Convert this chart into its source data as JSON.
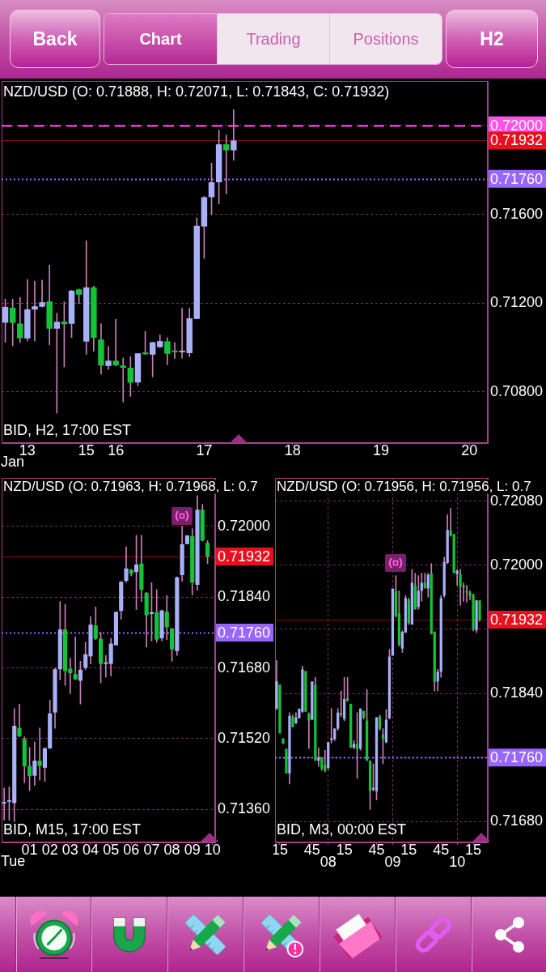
{
  "chart_data": [
    {
      "type": "other",
      "annotations": [
        "Back",
        "Chart",
        "Trading",
        "Positions",
        "H2"
      ]
    },
    {
      "type": "candlestick",
      "title": "NZD/USD (O: 0.71888, H: 0.72071, L: 0.71843, C: 0.71932)",
      "annotations": [
        "BID, H2, 17:00 EST",
        "Jan"
      ],
      "categories": [
        null,
        null,
        null,
        "13",
        null,
        null,
        null,
        null,
        null,
        null,
        null,
        "15",
        null,
        null,
        null,
        "16",
        null,
        null,
        null,
        null,
        null,
        null,
        null,
        null,
        null,
        null,
        null,
        "17",
        null,
        null,
        null,
        null,
        null,
        null,
        null,
        null,
        null,
        null,
        null,
        "18",
        null,
        null,
        null,
        null,
        null,
        null,
        null,
        null,
        null,
        null,
        null,
        "19",
        null,
        null,
        null,
        null,
        null,
        null,
        null,
        null,
        null,
        null,
        null,
        "20",
        null,
        null
      ],
      "ohlc": [
        [
          0.71112,
          0.71218,
          0.71024,
          0.71183
        ],
        [
          0.71179,
          0.71218,
          0.71008,
          0.71111
        ],
        [
          0.71108,
          0.71226,
          0.71023,
          0.71042
        ],
        [
          0.71041,
          0.71306,
          0.7103,
          0.71172
        ],
        [
          0.71171,
          0.71298,
          0.7103,
          0.71186
        ],
        [
          0.71184,
          0.71304,
          0.71182,
          0.71204
        ],
        [
          0.71208,
          0.71371,
          0.71012,
          0.71085
        ],
        [
          0.71085,
          0.71155,
          0.70705,
          0.71116
        ],
        [
          0.71117,
          0.71206,
          0.70913,
          0.71105
        ],
        [
          0.71107,
          0.71258,
          0.71045,
          0.71256
        ],
        [
          0.71262,
          0.71264,
          0.71197,
          0.71238
        ],
        [
          0.71027,
          0.71481,
          0.70969,
          0.71271
        ],
        [
          0.71271,
          0.71277,
          0.70984,
          0.71044
        ],
        [
          0.71036,
          0.71108,
          0.7088,
          0.70919
        ],
        [
          0.70917,
          0.71005,
          0.70901,
          0.70941
        ],
        [
          0.70941,
          0.71127,
          0.70917,
          0.7092
        ],
        [
          0.70919,
          0.70953,
          0.70755,
          0.70909
        ],
        [
          0.70909,
          0.70959,
          0.7078,
          0.70842
        ],
        [
          0.70843,
          0.70974,
          0.70828,
          0.70974
        ],
        [
          0.70975,
          0.71073,
          0.70968,
          0.7097
        ],
        [
          0.70968,
          0.71024,
          0.70868,
          0.71024
        ],
        [
          0.71002,
          0.71057,
          0.71,
          0.71029
        ],
        [
          0.71028,
          0.71045,
          0.70923,
          0.70972
        ],
        [
          0.70981,
          0.71023,
          0.7095,
          0.70979
        ],
        [
          0.70979,
          0.71177,
          0.70952,
          0.70981
        ],
        [
          0.70975,
          0.71177,
          0.70959,
          0.71132
        ],
        [
          0.71129,
          0.71584,
          0.71129,
          0.71548
        ],
        [
          0.71545,
          0.7168,
          0.71401,
          0.71677
        ],
        [
          0.71677,
          0.7183,
          0.71598,
          0.71744
        ],
        [
          0.71744,
          0.71979,
          0.71647,
          0.71915
        ],
        [
          0.71915,
          0.71957,
          0.71692,
          0.71888
        ],
        [
          0.71888,
          0.72071,
          0.71843,
          0.71932
        ],
        null,
        null,
        null,
        null,
        null,
        null,
        null,
        null,
        null,
        null,
        null,
        null,
        null,
        null,
        null,
        null,
        null,
        null,
        null,
        null,
        null,
        null,
        null,
        null,
        null,
        null,
        null,
        null,
        null,
        null,
        null,
        null,
        null,
        null
      ],
      "colors": [
        "#a8b0f8",
        "#16c236",
        "#16c236",
        "#a8b0f8",
        "#a8b0f8",
        "#a8b0f8",
        "#16c236",
        "#a8b0f8",
        "#16c236",
        "#a8b0f8",
        "#16c236",
        "#a8b0f8",
        "#16c236",
        "#16c236",
        "#a8b0f8",
        "#16c236",
        "#16c236",
        "#16c236",
        "#a8b0f8",
        "#16c236",
        "#a8b0f8",
        "#a8b0f8",
        "#16c236",
        "#16c236",
        "#a8b0f8",
        "#a8b0f8",
        "#a8b0f8",
        "#a8b0f8",
        "#a8b0f8",
        "#a8b0f8",
        "#16c236",
        "#a8b0f8",
        null,
        null,
        null,
        null,
        null,
        null,
        null,
        null,
        null,
        null,
        null,
        null,
        null,
        null,
        null,
        null,
        null,
        null,
        null,
        null,
        null,
        null,
        null,
        null,
        null,
        null,
        null,
        null,
        null,
        null,
        null,
        null,
        null,
        null
      ],
      "ylim": [
        0.7057,
        0.722
      ],
      "yticks": [
        {
          "value": 0.708,
          "label": "0.70800"
        },
        {
          "value": 0.712,
          "label": "0.71200"
        },
        {
          "value": 0.716,
          "label": "0.71600"
        },
        {
          "value": 0.72,
          "label": null
        }
      ],
      "grid": "y",
      "ref_lines": [
        {
          "axis": "y",
          "value": 0.72,
          "label": "0.72000",
          "color": "#ff55e6",
          "line_style": "dashed"
        },
        {
          "axis": "y",
          "value": 0.71932,
          "label": "0.71932",
          "color": "#e8101e",
          "line_style": "solid"
        },
        {
          "axis": "y",
          "value": 0.7176,
          "label": "0.71760",
          "color": "#9966ff",
          "line_style": "dotted"
        }
      ]
    },
    {
      "type": "candlestick",
      "title": "NZD/USD (O: 0.71963, H: 0.71968, L: 0.7",
      "annotations": [
        "BID, M15, 17:00 EST",
        "Tue"
      ],
      "categories": [
        null,
        null,
        null,
        null,
        null,
        "01",
        null,
        null,
        null,
        "02",
        null,
        null,
        null,
        "03",
        null,
        null,
        null,
        "04",
        null,
        null,
        null,
        "05",
        null,
        null,
        null,
        "06",
        null,
        null,
        null,
        "07",
        null,
        null,
        null,
        "08",
        null,
        null,
        null,
        "09",
        null,
        null,
        null,
        "10"
      ],
      "ohlc": [
        [
          0.71373,
          0.71408,
          0.71335,
          0.71374
        ],
        [
          0.71377,
          0.71411,
          0.71335,
          0.71378
        ],
        [
          0.71374,
          0.71588,
          0.71332,
          0.71549
        ],
        [
          0.71544,
          0.71598,
          0.71524,
          0.71525
        ],
        [
          0.71519,
          0.71524,
          0.7142,
          0.71457
        ],
        [
          0.71458,
          0.715,
          0.71402,
          0.71435
        ],
        [
          0.71436,
          0.71512,
          0.71414,
          0.7147
        ],
        [
          0.7147,
          0.71544,
          0.71426,
          0.71458
        ],
        [
          0.71454,
          0.715,
          0.71423,
          0.71498
        ],
        [
          0.71498,
          0.71607,
          0.71497,
          0.71577
        ],
        [
          0.71579,
          0.7168,
          0.71543,
          0.71677
        ],
        [
          0.71677,
          0.7183,
          0.71653,
          0.71767
        ],
        [
          0.71767,
          0.71824,
          0.7164,
          0.71673
        ],
        [
          0.71678,
          0.71702,
          0.71622,
          0.71668
        ],
        [
          0.71666,
          0.7175,
          0.71653,
          0.71654
        ],
        [
          0.71651,
          0.71695,
          0.71598,
          0.71676
        ],
        [
          0.7168,
          0.71738,
          0.71676,
          0.71711
        ],
        [
          0.71706,
          0.71796,
          0.71689,
          0.71778
        ],
        [
          0.71776,
          0.71818,
          0.71744,
          0.71746
        ],
        [
          0.71746,
          0.7176,
          0.71646,
          0.71689
        ],
        [
          0.71689,
          0.71708,
          0.71659,
          0.7169
        ],
        [
          0.71689,
          0.71747,
          0.71662,
          0.71735
        ],
        [
          0.71731,
          0.71808,
          0.7173,
          0.71807
        ],
        [
          0.71809,
          0.71876,
          0.7179,
          0.71875
        ],
        [
          0.71877,
          0.71954,
          0.71873,
          0.71905
        ],
        [
          0.71902,
          0.71903,
          0.71888,
          0.71893
        ],
        [
          0.71897,
          0.7198,
          0.71812,
          0.71914
        ],
        [
          0.71916,
          0.7198,
          0.7183,
          0.71857
        ],
        [
          0.7185,
          0.71851,
          0.71727,
          0.71799
        ],
        [
          0.71802,
          0.71873,
          0.71741,
          0.71806
        ],
        [
          0.71806,
          0.71857,
          0.71738,
          0.71744
        ],
        [
          0.71747,
          0.71811,
          0.71741,
          0.7181
        ],
        [
          0.71807,
          0.71844,
          0.71744,
          0.71772
        ],
        [
          0.71769,
          0.7177,
          0.71695,
          0.71722
        ],
        [
          0.71718,
          0.71886,
          0.71708,
          0.71885
        ],
        [
          0.7189,
          0.72001,
          0.71876,
          0.7196
        ],
        [
          0.7196,
          0.71981,
          0.71959,
          0.7198
        ],
        [
          0.71978,
          0.71995,
          0.71845,
          0.71873
        ],
        [
          0.71868,
          0.7207,
          0.71856,
          0.72038
        ],
        [
          0.72038,
          0.7205,
          0.71967,
          0.71968
        ],
        [
          0.71963,
          0.71968,
          0.71916,
          0.71932
        ],
        null
      ],
      "colors": [
        "#a8b0f8",
        "#a8b0f8",
        "#a8b0f8",
        "#16c236",
        "#16c236",
        "#16c236",
        "#a8b0f8",
        "#16c236",
        "#a8b0f8",
        "#a8b0f8",
        "#a8b0f8",
        "#a8b0f8",
        "#16c236",
        "#16c236",
        "#16c236",
        "#a8b0f8",
        "#a8b0f8",
        "#a8b0f8",
        "#16c236",
        "#16c236",
        "#a8b0f8",
        "#a8b0f8",
        "#a8b0f8",
        "#a8b0f8",
        "#a8b0f8",
        "#16c236",
        "#a8b0f8",
        "#16c236",
        "#16c236",
        "#a8b0f8",
        "#16c236",
        "#a8b0f8",
        "#16c236",
        "#16c236",
        "#a8b0f8",
        "#a8b0f8",
        "#a8b0f8",
        "#16c236",
        "#a8b0f8",
        "#16c236",
        "#16c236",
        null
      ],
      "ylim": [
        0.71285,
        0.7211
      ],
      "yticks": [
        {
          "value": 0.7136,
          "label": "0.71360"
        },
        {
          "value": 0.7152,
          "label": "0.71520"
        },
        {
          "value": 0.7168,
          "label": "0.71680"
        },
        {
          "value": 0.7184,
          "label": "0.71840"
        },
        {
          "value": 0.72,
          "label": "0.72000"
        }
      ],
      "grid": "y",
      "ref_lines": [
        {
          "axis": "y",
          "value": 0.71932,
          "label": "0.71932",
          "color": "#e8101e",
          "line_style": "solid"
        },
        {
          "axis": "y",
          "value": 0.7176,
          "label": "0.71760",
          "color": "#9966ff",
          "line_style": "dotted"
        }
      ]
    },
    {
      "type": "candlestick",
      "title": "NZD/USD (O: 0.71956, H: 0.71956, L: 0.7",
      "annotations": [
        "BID, M3, 00:00 EST"
      ],
      "categories": [
        null,
        "15",
        null,
        null,
        null,
        null,
        null,
        null,
        null,
        null,
        null,
        "45",
        null,
        null,
        null,
        null,
        "\n08",
        null,
        null,
        null,
        null,
        "15",
        null,
        null,
        null,
        null,
        null,
        null,
        null,
        null,
        null,
        "45",
        null,
        null,
        null,
        null,
        "\n09",
        null,
        null,
        null,
        null,
        "15",
        null,
        null,
        null,
        null,
        null,
        null,
        null,
        null,
        null,
        "45",
        null,
        null,
        null,
        null,
        "\n10",
        null,
        null,
        null,
        null,
        "15",
        null,
        null,
        null,
        null
      ],
      "ohlc": [
        [
          0.71821,
          0.71881,
          0.7182,
          0.71855
        ],
        [
          0.71851,
          0.71851,
          0.71789,
          0.7179
        ],
        [
          0.71784,
          0.71784,
          0.71776,
          0.71777
        ],
        [
          0.71771,
          0.71771,
          0.71739,
          0.7174
        ],
        [
          0.7174,
          0.71816,
          0.71727,
          0.71812
        ],
        [
          0.71811,
          0.71813,
          0.71798,
          0.71798
        ],
        [
          0.71803,
          0.71816,
          0.71802,
          0.7181
        ],
        [
          0.71809,
          0.71821,
          0.71808,
          0.71821
        ],
        [
          0.71817,
          0.71874,
          0.71816,
          0.7187
        ],
        [
          0.71868,
          0.71869,
          0.71816,
          0.71817
        ],
        [
          0.71814,
          0.71816,
          0.71771,
          0.71806
        ],
        [
          0.71807,
          0.71855,
          0.71806,
          0.71855
        ],
        [
          0.71851,
          0.7186,
          0.71756,
          0.71756
        ],
        [
          0.71756,
          0.71772,
          0.71749,
          0.7176
        ],
        [
          0.7176,
          0.7176,
          0.71744,
          0.71746
        ],
        [
          0.71751,
          0.71769,
          0.71742,
          0.71744
        ],
        [
          0.71747,
          0.71779,
          0.71745,
          0.71779
        ],
        [
          0.71782,
          0.71821,
          0.71778,
          0.71783
        ],
        [
          0.71783,
          0.71796,
          0.71781,
          0.71796
        ],
        [
          0.71796,
          0.71821,
          0.71794,
          0.71816
        ],
        [
          0.71816,
          0.71843,
          0.71811,
          0.71813
        ],
        [
          0.71808,
          0.7186,
          0.71806,
          0.71833
        ],
        [
          0.71834,
          0.7186,
          0.7183,
          0.71831
        ],
        [
          0.71827,
          0.71827,
          0.71772,
          0.71772
        ],
        [
          0.71772,
          0.71781,
          0.71771,
          0.71777
        ],
        [
          0.71777,
          0.71816,
          0.71734,
          0.71771
        ],
        [
          0.71771,
          0.71821,
          0.71769,
          0.71821
        ],
        [
          0.71818,
          0.71818,
          0.71808,
          0.7181
        ],
        [
          0.71806,
          0.71845,
          0.71756,
          0.71756
        ],
        [
          0.71756,
          0.71756,
          0.71695,
          0.71718
        ],
        [
          0.7172,
          0.71752,
          0.71718,
          0.71722
        ],
        [
          0.71718,
          0.7181,
          0.71707,
          0.7181
        ],
        [
          0.71811,
          0.71813,
          0.71794,
          0.71796
        ],
        [
          0.71789,
          0.71796,
          0.71752,
          0.71783
        ],
        [
          0.71779,
          0.7182,
          0.71778,
          0.71807
        ],
        [
          0.71809,
          0.71895,
          0.71808,
          0.71886
        ],
        [
          0.71887,
          0.71971,
          0.71886,
          0.71971
        ],
        [
          0.71968,
          0.71987,
          0.71935,
          0.71937
        ],
        [
          0.7194,
          0.71968,
          0.71899,
          0.71901
        ],
        [
          0.71896,
          0.71918,
          0.71891,
          0.71917
        ],
        [
          0.71916,
          0.71962,
          0.71916,
          0.71959
        ],
        [
          0.71956,
          0.71959,
          0.71926,
          0.71928
        ],
        [
          0.71926,
          0.71995,
          0.71926,
          0.71978
        ],
        [
          0.71975,
          0.7199,
          0.71945,
          0.71945
        ],
        [
          0.71948,
          0.71987,
          0.71945,
          0.71968
        ],
        [
          0.71968,
          0.7199,
          0.71955,
          0.71978
        ],
        [
          0.71978,
          0.7199,
          0.71971,
          0.71972
        ],
        [
          0.71971,
          0.7199,
          0.7196,
          0.71988
        ],
        [
          0.7199,
          0.72002,
          0.71914,
          0.71914
        ],
        [
          0.71917,
          0.71917,
          0.71843,
          0.71854
        ],
        [
          0.71855,
          0.7187,
          0.71843,
          0.71867
        ],
        [
          0.71867,
          0.71962,
          0.7186,
          0.71959
        ],
        [
          0.71962,
          0.7201,
          0.7196,
          0.72004
        ],
        [
          0.72003,
          0.72063,
          0.72002,
          0.72044
        ],
        [
          0.72043,
          0.72071,
          0.72036,
          0.72037
        ],
        [
          0.72039,
          0.72039,
          0.71989,
          0.7199
        ],
        [
          0.71989,
          0.71995,
          0.71975,
          0.71993
        ],
        [
          0.71989,
          0.71995,
          0.7195,
          0.71973
        ],
        [
          0.71973,
          0.71978,
          0.71955,
          0.71972
        ],
        [
          0.71968,
          0.71975,
          0.71954,
          0.71966
        ],
        [
          0.71966,
          0.71968,
          0.71957,
          0.71962
        ],
        [
          0.71963,
          0.71964,
          0.71918,
          0.71921
        ],
        [
          0.71919,
          0.71956,
          0.71916,
          0.71956
        ],
        [
          0.71956,
          0.71956,
          0.7193,
          0.71932
        ],
        null,
        null
      ],
      "colors": [
        "#a8b0f8",
        "#16c236",
        "#16c236",
        "#16c236",
        "#a8b0f8",
        "#16c236",
        "#a8b0f8",
        "#a8b0f8",
        "#a8b0f8",
        "#16c236",
        "#16c236",
        "#a8b0f8",
        "#16c236",
        "#a8b0f8",
        "#16c236",
        "#16c236",
        "#a8b0f8",
        "#a8b0f8",
        "#a8b0f8",
        "#a8b0f8",
        "#16c236",
        "#a8b0f8",
        "#16c236",
        "#16c236",
        "#a8b0f8",
        "#16c236",
        "#a8b0f8",
        "#16c236",
        "#16c236",
        "#16c236",
        "#a8b0f8",
        "#a8b0f8",
        "#16c236",
        "#16c236",
        "#a8b0f8",
        "#a8b0f8",
        "#a8b0f8",
        "#16c236",
        "#16c236",
        "#a8b0f8",
        "#a8b0f8",
        "#16c236",
        "#a8b0f8",
        "#16c236",
        "#a8b0f8",
        "#a8b0f8",
        "#16c236",
        "#a8b0f8",
        "#16c236",
        "#16c236",
        "#a8b0f8",
        "#a8b0f8",
        "#a8b0f8",
        "#a8b0f8",
        "#16c236",
        "#16c236",
        "#a8b0f8",
        "#16c236",
        "#16c236",
        "#16c236",
        "#16c236",
        "#16c236",
        "#a8b0f8",
        "#16c236",
        null,
        null
      ],
      "ylim": [
        0.71654,
        0.72109
      ],
      "yticks": [
        {
          "value": 0.7168,
          "label": "0.71680"
        },
        {
          "value": 0.7176,
          "label": null
        },
        {
          "value": 0.7184,
          "label": "0.71840"
        },
        {
          "value": 0.7192,
          "label": null
        },
        {
          "value": 0.72,
          "label": "0.72000"
        },
        {
          "value": 0.7208,
          "label": "0.72080"
        }
      ],
      "grid": true,
      "ref_lines": [
        {
          "axis": "y",
          "value": 0.71932,
          "label": "0.71932",
          "color": "#e8101e",
          "line_style": "solid"
        },
        {
          "axis": "y",
          "value": 0.7176,
          "label": "0.71760",
          "color": "#9966ff",
          "line_style": "dotted"
        }
      ]
    }
  ]
}
